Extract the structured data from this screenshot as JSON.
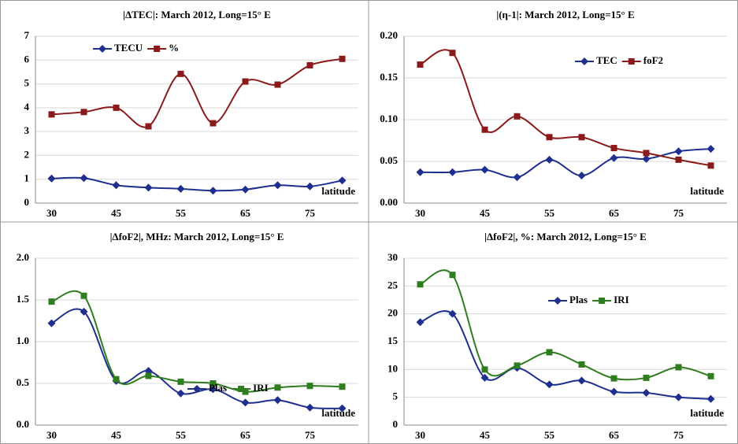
{
  "chart_data": [
    {
      "type": "line",
      "title": "|ΔTEC|: March 2012, Long=15° E",
      "categories": [
        "30",
        null,
        "45",
        null,
        "55",
        null,
        "65",
        null,
        "75",
        null
      ],
      "series": [
        {
          "name": "TECU",
          "color": "#1f2f8f",
          "marker": "diamond",
          "values": [
            1.03,
            1.05,
            0.75,
            0.65,
            0.6,
            0.52,
            0.57,
            0.75,
            0.7,
            0.95
          ]
        },
        {
          "name": "%",
          "color": "#8b1a1a",
          "marker": "square",
          "values": [
            3.72,
            3.82,
            4.0,
            3.22,
            5.42,
            3.35,
            5.1,
            4.97,
            5.78,
            6.05
          ]
        }
      ],
      "ylim": [
        0,
        7
      ],
      "yticks": [
        0,
        1,
        2,
        3,
        4,
        5,
        6,
        7
      ],
      "grid": true,
      "annotation": "latitude"
    },
    {
      "type": "line",
      "title": "|(η-1|: March 2012, Long=15° E",
      "categories": [
        "30",
        null,
        "45",
        null,
        "55",
        null,
        "65",
        null,
        "75",
        null
      ],
      "series": [
        {
          "name": "TEC",
          "color": "#1f2f8f",
          "marker": "diamond",
          "values": [
            0.037,
            0.037,
            0.04,
            0.031,
            0.052,
            0.033,
            0.054,
            0.053,
            0.062,
            0.065
          ]
        },
        {
          "name": "foF2",
          "color": "#8b1a1a",
          "marker": "square",
          "values": [
            0.166,
            0.18,
            0.088,
            0.104,
            0.079,
            0.079,
            0.066,
            0.06,
            0.052,
            0.045
          ]
        }
      ],
      "ylim": [
        0,
        0.2
      ],
      "yticks": [
        {
          "value": 0,
          "label": "0.00"
        },
        {
          "value": 0.05,
          "label": "0.05"
        },
        {
          "value": 0.1,
          "label": "0.10"
        },
        {
          "value": 0.15,
          "label": "0.15"
        },
        {
          "value": 0.2,
          "label": "0.20"
        }
      ],
      "grid": true,
      "annotation": "latitude"
    },
    {
      "type": "line",
      "title": "|ΔfoF2|, MHz: March 2012, Long=15° E",
      "categories": [
        "30",
        null,
        "45",
        null,
        "55",
        null,
        "65",
        null,
        "75",
        null
      ],
      "series": [
        {
          "name": "Plas",
          "color": "#1f2f8f",
          "marker": "diamond",
          "values": [
            1.22,
            1.36,
            0.53,
            0.65,
            0.38,
            0.43,
            0.27,
            0.3,
            0.21,
            0.2
          ]
        },
        {
          "name": "IRI",
          "color": "#2e7d1e",
          "marker": "square",
          "values": [
            1.48,
            1.55,
            0.55,
            0.59,
            0.52,
            0.5,
            0.4,
            0.45,
            0.47,
            0.46
          ]
        }
      ],
      "ylim": [
        0,
        2
      ],
      "yticks": [
        {
          "value": 0,
          "label": "0.0"
        },
        {
          "value": 0.5,
          "label": "0.5"
        },
        {
          "value": 1,
          "label": "1.0"
        },
        {
          "value": 1.5,
          "label": "1.5"
        },
        {
          "value": 2,
          "label": "2.0"
        }
      ],
      "grid": true,
      "annotation": "latitude"
    },
    {
      "type": "line",
      "title": "|ΔfoF2|, %: March 2012, Long=15° E",
      "categories": [
        "30",
        null,
        "45",
        null,
        "55",
        null,
        "65",
        null,
        "75",
        null
      ],
      "series": [
        {
          "name": "Plas",
          "color": "#1f2f8f",
          "marker": "diamond",
          "values": [
            18.5,
            20,
            8.5,
            10.3,
            7.3,
            8,
            6,
            5.8,
            5,
            4.7
          ]
        },
        {
          "name": "IRI",
          "color": "#2e7d1e",
          "marker": "square",
          "values": [
            25.3,
            27,
            10,
            10.7,
            13.1,
            10.9,
            8.4,
            8.5,
            10.4,
            8.8
          ]
        }
      ],
      "ylim": [
        0,
        30
      ],
      "yticks": [
        0,
        5,
        10,
        15,
        20,
        25,
        30
      ],
      "grid": true,
      "annotation": "latitude"
    }
  ]
}
